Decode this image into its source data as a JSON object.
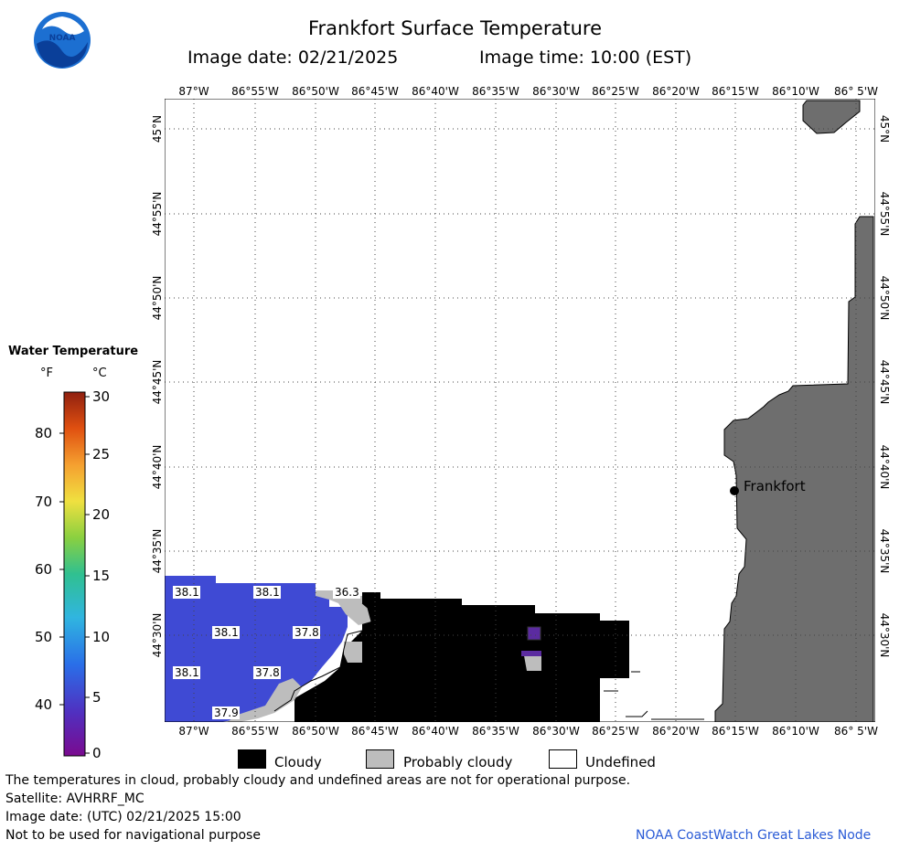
{
  "header": {
    "title": "Frankfort Surface Temperature",
    "image_date": "Image date: 02/21/2025",
    "image_time": "Image time: 10:00 (EST)"
  },
  "logo": {
    "text": "NOAA",
    "icon": "noaa-logo-icon"
  },
  "map": {
    "lon_labels": [
      "87°W",
      "86°55'W",
      "86°50'W",
      "86°45'W",
      "86°40'W",
      "86°35'W",
      "86°30'W",
      "86°25'W",
      "86°20'W",
      "86°15'W",
      "86°10'W",
      "86° 5'W"
    ],
    "lat_labels": [
      "45°N",
      "44°55'N",
      "44°50'N",
      "44°45'N",
      "44°40'N",
      "44°35'N",
      "44°30'N"
    ],
    "city": "Frankfort",
    "temperature_labels": [
      "38.1",
      "38.1",
      "38.1",
      "37.8",
      "38.1",
      "37.8",
      "37.9",
      "36.3"
    ],
    "colors": {
      "land": "#6e6e6e",
      "cloudy": "#000000",
      "probably_cloudy": "#bdbdbd",
      "water_38": "#3f4ad4",
      "water_37": "#4a52cf",
      "grid": "#555555"
    }
  },
  "legend": {
    "title": "Water Temperature",
    "unit_f": "°F",
    "unit_c": "°C",
    "fahrenheit_ticks": [
      "80",
      "70",
      "60",
      "50",
      "40"
    ],
    "celsius_ticks": [
      "30",
      "25",
      "20",
      "15",
      "10",
      "5",
      "0"
    ],
    "categories": [
      "Cloudy",
      "Probably cloudy",
      "Undefined"
    ]
  },
  "footer": {
    "disclaimer": "The temperatures in cloud, probably cloudy and undefined areas are not for operational purpose.",
    "satellite": "Satellite: AVHRRF_MC",
    "utc_date": "Image date: (UTC) 02/21/2025  15:00",
    "nav_warning": "Not to be used for navigational purpose",
    "credit": "NOAA CoastWatch Great Lakes Node"
  }
}
